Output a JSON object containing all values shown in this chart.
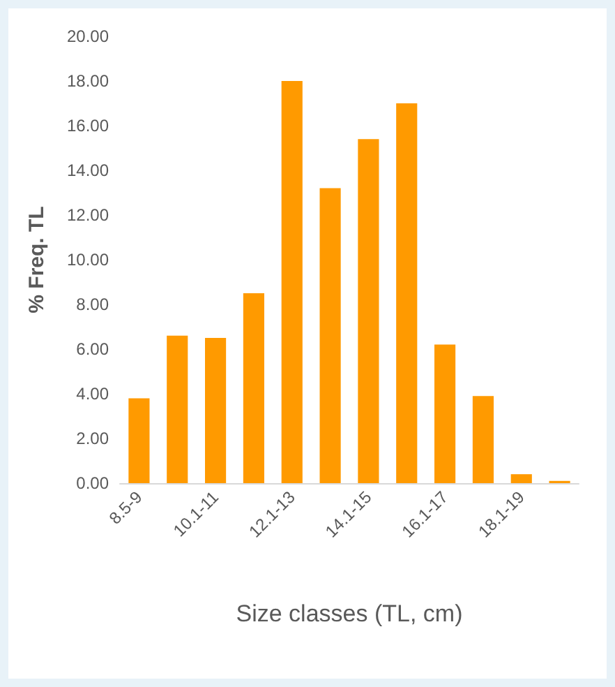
{
  "chart_data": {
    "type": "bar",
    "xlabel": "Size classes (TL, cm)",
    "ylabel": "% Freq. TL",
    "categories": [
      "8.5-9",
      null,
      "10.1-11",
      null,
      "12.1-13",
      null,
      "14.1-15",
      null,
      "16.1-17",
      null,
      "18.1-19",
      null
    ],
    "values": [
      3.8,
      6.6,
      6.5,
      8.5,
      18.0,
      13.2,
      15.4,
      17.0,
      6.2,
      3.9,
      0.4,
      0.1
    ],
    "color": "#ff9a00",
    "ylim": [
      0,
      20
    ],
    "yticks": [
      {
        "value": 0,
        "label": "0.00"
      },
      {
        "value": 2,
        "label": "2.00"
      },
      {
        "value": 4,
        "label": "4.00"
      },
      {
        "value": 6,
        "label": "6.00"
      },
      {
        "value": 8,
        "label": "8.00"
      },
      {
        "value": 10,
        "label": "10.00"
      },
      {
        "value": 12,
        "label": "12.00"
      },
      {
        "value": 14,
        "label": "14.00"
      },
      {
        "value": 16,
        "label": "16.00"
      },
      {
        "value": 18,
        "label": "18.00"
      },
      {
        "value": 20,
        "label": "20.00"
      }
    ],
    "grid": false
  }
}
